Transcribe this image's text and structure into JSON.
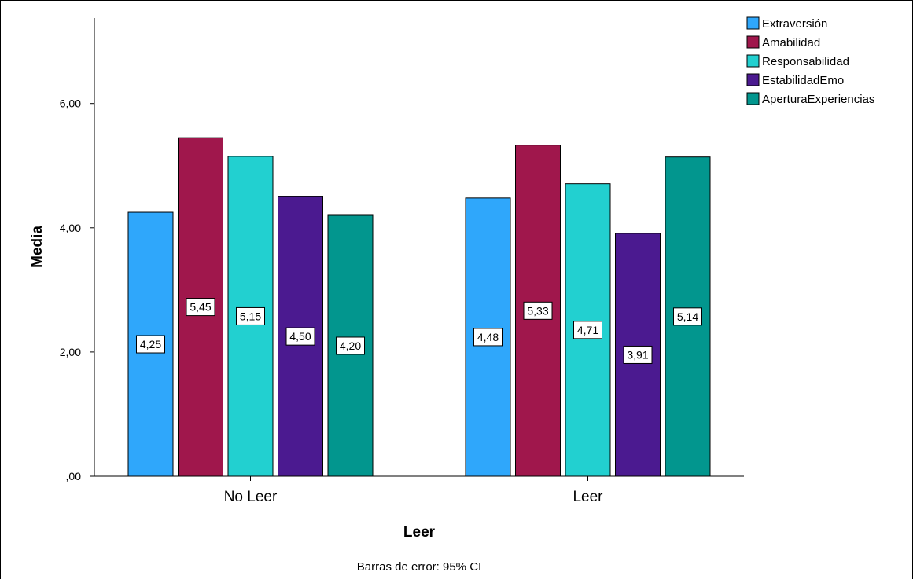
{
  "chart_data": {
    "type": "bar",
    "categories": [
      "No Leer",
      "Leer"
    ],
    "series": [
      {
        "name": "Extraversión",
        "values": [
          4.25,
          4.48
        ],
        "labels": [
          "4,25",
          "4,48"
        ],
        "color": "#2FA7FB"
      },
      {
        "name": "Amabilidad",
        "values": [
          5.45,
          5.33
        ],
        "labels": [
          "5,45",
          "5,33"
        ],
        "color": "#A0174C"
      },
      {
        "name": "Responsabilidad",
        "values": [
          5.15,
          4.71
        ],
        "labels": [
          "5,15",
          "4,71"
        ],
        "color": "#22D0D0"
      },
      {
        "name": "EstabilidadEmo",
        "values": [
          4.5,
          3.91
        ],
        "labels": [
          "4,50",
          "3,91"
        ],
        "color": "#4B1A90"
      },
      {
        "name": "AperturaExperiencias",
        "values": [
          4.2,
          5.14
        ],
        "labels": [
          "4,20",
          "5,14"
        ],
        "color": "#02968E"
      }
    ],
    "xlabel": "Leer",
    "ylabel": "Media",
    "ylim": [
      0,
      7.4
    ],
    "yticks": [
      0,
      2,
      4,
      6
    ],
    "ytick_labels": [
      ",00",
      "2,00",
      "4,00",
      "6,00"
    ],
    "grid": false,
    "legend_position": "top-right",
    "footnote": "Barras de error: 95% CI"
  }
}
